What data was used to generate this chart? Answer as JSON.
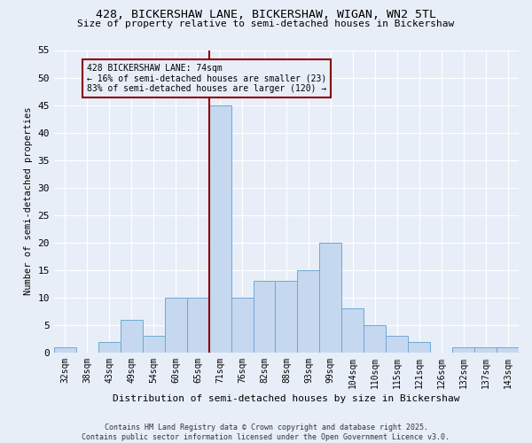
{
  "title": "428, BICKERSHAW LANE, BICKERSHAW, WIGAN, WN2 5TL",
  "subtitle": "Size of property relative to semi-detached houses in Bickershaw",
  "xlabel": "Distribution of semi-detached houses by size in Bickershaw",
  "ylabel": "Number of semi-detached properties",
  "categories": [
    "32sqm",
    "38sqm",
    "43sqm",
    "49sqm",
    "54sqm",
    "60sqm",
    "65sqm",
    "71sqm",
    "76sqm",
    "82sqm",
    "88sqm",
    "93sqm",
    "99sqm",
    "104sqm",
    "110sqm",
    "115sqm",
    "121sqm",
    "126sqm",
    "132sqm",
    "137sqm",
    "143sqm"
  ],
  "values": [
    1,
    0,
    2,
    6,
    3,
    10,
    10,
    45,
    10,
    13,
    13,
    15,
    20,
    8,
    5,
    3,
    2,
    0,
    1,
    1,
    1
  ],
  "bar_color": "#c5d8f0",
  "bar_edge_color": "#6fa8d4",
  "property_label": "428 BICKERSHAW LANE: 74sqm",
  "smaller_pct": 16,
  "smaller_count": 23,
  "larger_pct": 83,
  "larger_count": 120,
  "vline_color": "#8b0000",
  "annotation_box_color": "#8b0000",
  "ylim": [
    0,
    55
  ],
  "yticks": [
    0,
    5,
    10,
    15,
    20,
    25,
    30,
    35,
    40,
    45,
    50,
    55
  ],
  "bg_color": "#e8eef8",
  "footer": "Contains HM Land Registry data © Crown copyright and database right 2025.\nContains public sector information licensed under the Open Government Licence v3.0."
}
